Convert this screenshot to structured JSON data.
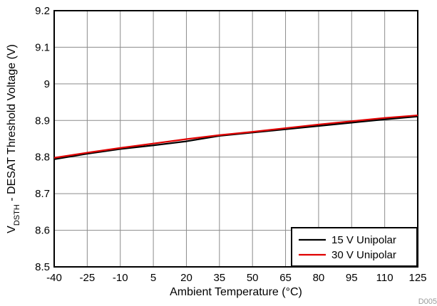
{
  "chart_data": {
    "type": "line",
    "title": "",
    "xlabel": "Ambient Temperature (°C)",
    "ylabel": {
      "prefix": "V",
      "subscript": "DSTH",
      "suffix": " - DESAT Threshold Voltage (V)"
    },
    "xlim": [
      -40,
      125
    ],
    "ylim": [
      8.5,
      9.2
    ],
    "xticks": [
      -40,
      -25,
      -10,
      5,
      20,
      35,
      50,
      65,
      80,
      95,
      110,
      125
    ],
    "yticks": [
      8.5,
      8.6,
      8.7,
      8.8,
      8.9,
      9.0,
      9.1,
      9.2
    ],
    "xtick_labels": [
      "-40",
      "-25",
      "-10",
      "5",
      "20",
      "35",
      "50",
      "65",
      "80",
      "95",
      "110",
      "125"
    ],
    "ytick_labels": [
      "8.5",
      "8.6",
      "8.7",
      "8.8",
      "8.9",
      "9",
      "9.1",
      "9.2"
    ],
    "grid": true,
    "legend_position": "bottom-right",
    "series": [
      {
        "name": "15 V Unipolar",
        "color": "#000000",
        "x": [
          -40,
          -25,
          -10,
          5,
          20,
          35,
          50,
          65,
          80,
          95,
          110,
          125
        ],
        "y": [
          8.794,
          8.809,
          8.822,
          8.832,
          8.843,
          8.858,
          8.867,
          8.876,
          8.885,
          8.894,
          8.903,
          8.911
        ]
      },
      {
        "name": "30 V Unipolar",
        "color": "#e00000",
        "x": [
          -40,
          -25,
          -10,
          5,
          20,
          35,
          50,
          65,
          80,
          95,
          110,
          125
        ],
        "y": [
          8.798,
          8.812,
          8.825,
          8.837,
          8.849,
          8.86,
          8.869,
          8.879,
          8.889,
          8.898,
          8.907,
          8.914
        ]
      }
    ],
    "figure_id": "D005"
  }
}
